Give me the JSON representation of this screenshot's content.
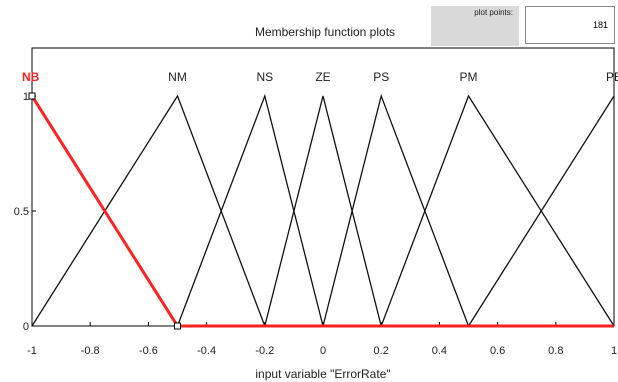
{
  "header": {
    "title": "Membership function plots",
    "plot_points_label": "plot points:",
    "plot_points_value": "181"
  },
  "colors": {
    "selected": "#ff2020",
    "line": "#111111"
  },
  "chart_data": {
    "type": "line",
    "title": "",
    "xlabel": "input variable \"ErrorRate\"",
    "ylabel": "",
    "xlim": [
      -1,
      1
    ],
    "ylim": [
      0,
      1
    ],
    "x_ticks": [
      "-1",
      "-0.8",
      "-0.6",
      "-0.4",
      "-0.2",
      "0",
      "0.2",
      "0.4",
      "0.6",
      "0.8",
      "1"
    ],
    "y_ticks": [
      "0",
      "0.5",
      "1"
    ],
    "series": [
      {
        "name": "NB",
        "points": [
          [
            -1,
            1
          ],
          [
            -0.5,
            0
          ],
          [
            1,
            0
          ]
        ],
        "selected": true
      },
      {
        "name": "NM",
        "points": [
          [
            -1,
            0
          ],
          [
            -0.5,
            1
          ],
          [
            -0.2,
            0
          ]
        ]
      },
      {
        "name": "NS",
        "points": [
          [
            -0.5,
            0
          ],
          [
            -0.2,
            1
          ],
          [
            0,
            0
          ]
        ]
      },
      {
        "name": "ZE",
        "points": [
          [
            -0.2,
            0
          ],
          [
            0,
            1
          ],
          [
            0.2,
            0
          ]
        ]
      },
      {
        "name": "PS",
        "points": [
          [
            0,
            0
          ],
          [
            0.2,
            1
          ],
          [
            0.5,
            0
          ]
        ]
      },
      {
        "name": "PM",
        "points": [
          [
            0.2,
            0
          ],
          [
            0.5,
            1
          ],
          [
            1,
            0
          ]
        ]
      },
      {
        "name": "PB",
        "points": [
          [
            0.5,
            0
          ],
          [
            1,
            1
          ]
        ]
      }
    ]
  }
}
